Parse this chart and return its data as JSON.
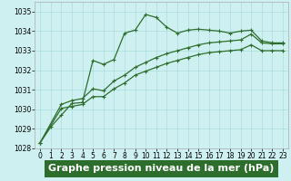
{
  "xlabel": "Graphe pression niveau de la mer (hPa)",
  "background_color": "#cff0f0",
  "xlabel_bg_color": "#2d6e2d",
  "xlabel_text_color": "#ffffff",
  "grid_color": "#aadddd",
  "line_color": "#2d6e2d",
  "xlim": [
    -0.5,
    23.5
  ],
  "ylim": [
    1028,
    1035.5
  ],
  "yticks": [
    1028,
    1029,
    1030,
    1031,
    1032,
    1033,
    1034,
    1035
  ],
  "xticks": [
    0,
    1,
    2,
    3,
    4,
    5,
    6,
    7,
    8,
    9,
    10,
    11,
    12,
    13,
    14,
    15,
    16,
    17,
    18,
    19,
    20,
    21,
    22,
    23
  ],
  "series1_x": [
    0,
    1,
    2,
    3,
    4,
    5,
    6,
    7,
    8,
    9,
    10,
    11,
    12,
    13,
    14,
    15,
    16,
    17,
    18,
    19,
    20,
    21,
    22,
    23
  ],
  "series1_y": [
    1028.3,
    1029.1,
    1029.7,
    1030.3,
    1030.35,
    1032.5,
    1032.3,
    1032.55,
    1033.9,
    1034.05,
    1034.85,
    1034.7,
    1034.2,
    1033.9,
    1034.05,
    1034.1,
    1034.05,
    1034.0,
    1033.9,
    1034.0,
    1034.05,
    1033.5,
    1033.4,
    1033.4
  ],
  "series2_x": [
    0,
    2,
    3,
    4,
    5,
    6,
    7,
    8,
    9,
    10,
    11,
    12,
    13,
    14,
    15,
    16,
    17,
    18,
    19,
    20,
    21,
    22,
    23
  ],
  "series2_y": [
    1028.3,
    1030.25,
    1030.45,
    1030.55,
    1031.05,
    1030.95,
    1031.45,
    1031.75,
    1032.15,
    1032.4,
    1032.65,
    1032.85,
    1033.0,
    1033.15,
    1033.3,
    1033.4,
    1033.45,
    1033.5,
    1033.55,
    1033.85,
    1033.4,
    1033.35,
    1033.35
  ],
  "series3_x": [
    0,
    2,
    3,
    4,
    5,
    6,
    7,
    8,
    9,
    10,
    11,
    12,
    13,
    14,
    15,
    16,
    17,
    18,
    19,
    20,
    21,
    22,
    23
  ],
  "series3_y": [
    1028.3,
    1030.05,
    1030.15,
    1030.25,
    1030.65,
    1030.65,
    1031.05,
    1031.35,
    1031.75,
    1031.95,
    1032.15,
    1032.35,
    1032.5,
    1032.65,
    1032.8,
    1032.9,
    1032.95,
    1033.0,
    1033.05,
    1033.3,
    1033.0,
    1033.0,
    1033.0
  ],
  "markersize": 3.5,
  "linewidth": 0.9,
  "xlabel_fontsize": 8,
  "tick_fontsize": 5.5
}
